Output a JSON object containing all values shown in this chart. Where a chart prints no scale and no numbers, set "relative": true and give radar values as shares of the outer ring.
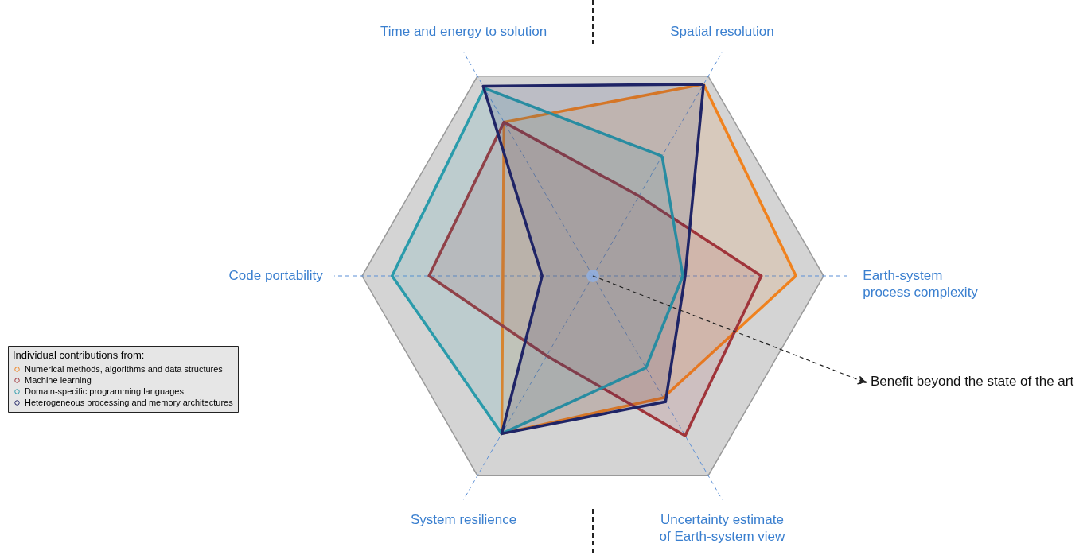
{
  "chart_data": {
    "type": "radar",
    "relative": true,
    "grid": true,
    "legend": "left",
    "legend_title": "Individual contributions from:",
    "categories": [
      "Spatial resolution",
      "Earth-system\nprocess complexity",
      "Uncertainty estimate\nof Earth-system view",
      "System resilience",
      "Code portability",
      "Time and energy to solution"
    ],
    "series": [
      {
        "name": "Numerical methods, algorithms and data structures",
        "color": "#f0821e",
        "values": [
          0.96,
          0.88,
          0.61,
          0.79,
          0.39,
          0.77
        ]
      },
      {
        "name": "Machine learning",
        "color": "#a0343a",
        "values": [
          0.4,
          0.73,
          0.8,
          0.4,
          0.71,
          0.77
        ]
      },
      {
        "name": "Domain-specific programming languages",
        "color": "#2a9bab",
        "values": [
          0.6,
          0.39,
          0.46,
          0.79,
          0.87,
          0.94
        ]
      },
      {
        "name": "Heterogeneous processing and memory architectures",
        "color": "#1f2466",
        "values": [
          0.96,
          0.4,
          0.63,
          0.79,
          0.22,
          0.95
        ]
      }
    ],
    "annotations": [
      "Benefit beyond the state of the art"
    ]
  }
}
